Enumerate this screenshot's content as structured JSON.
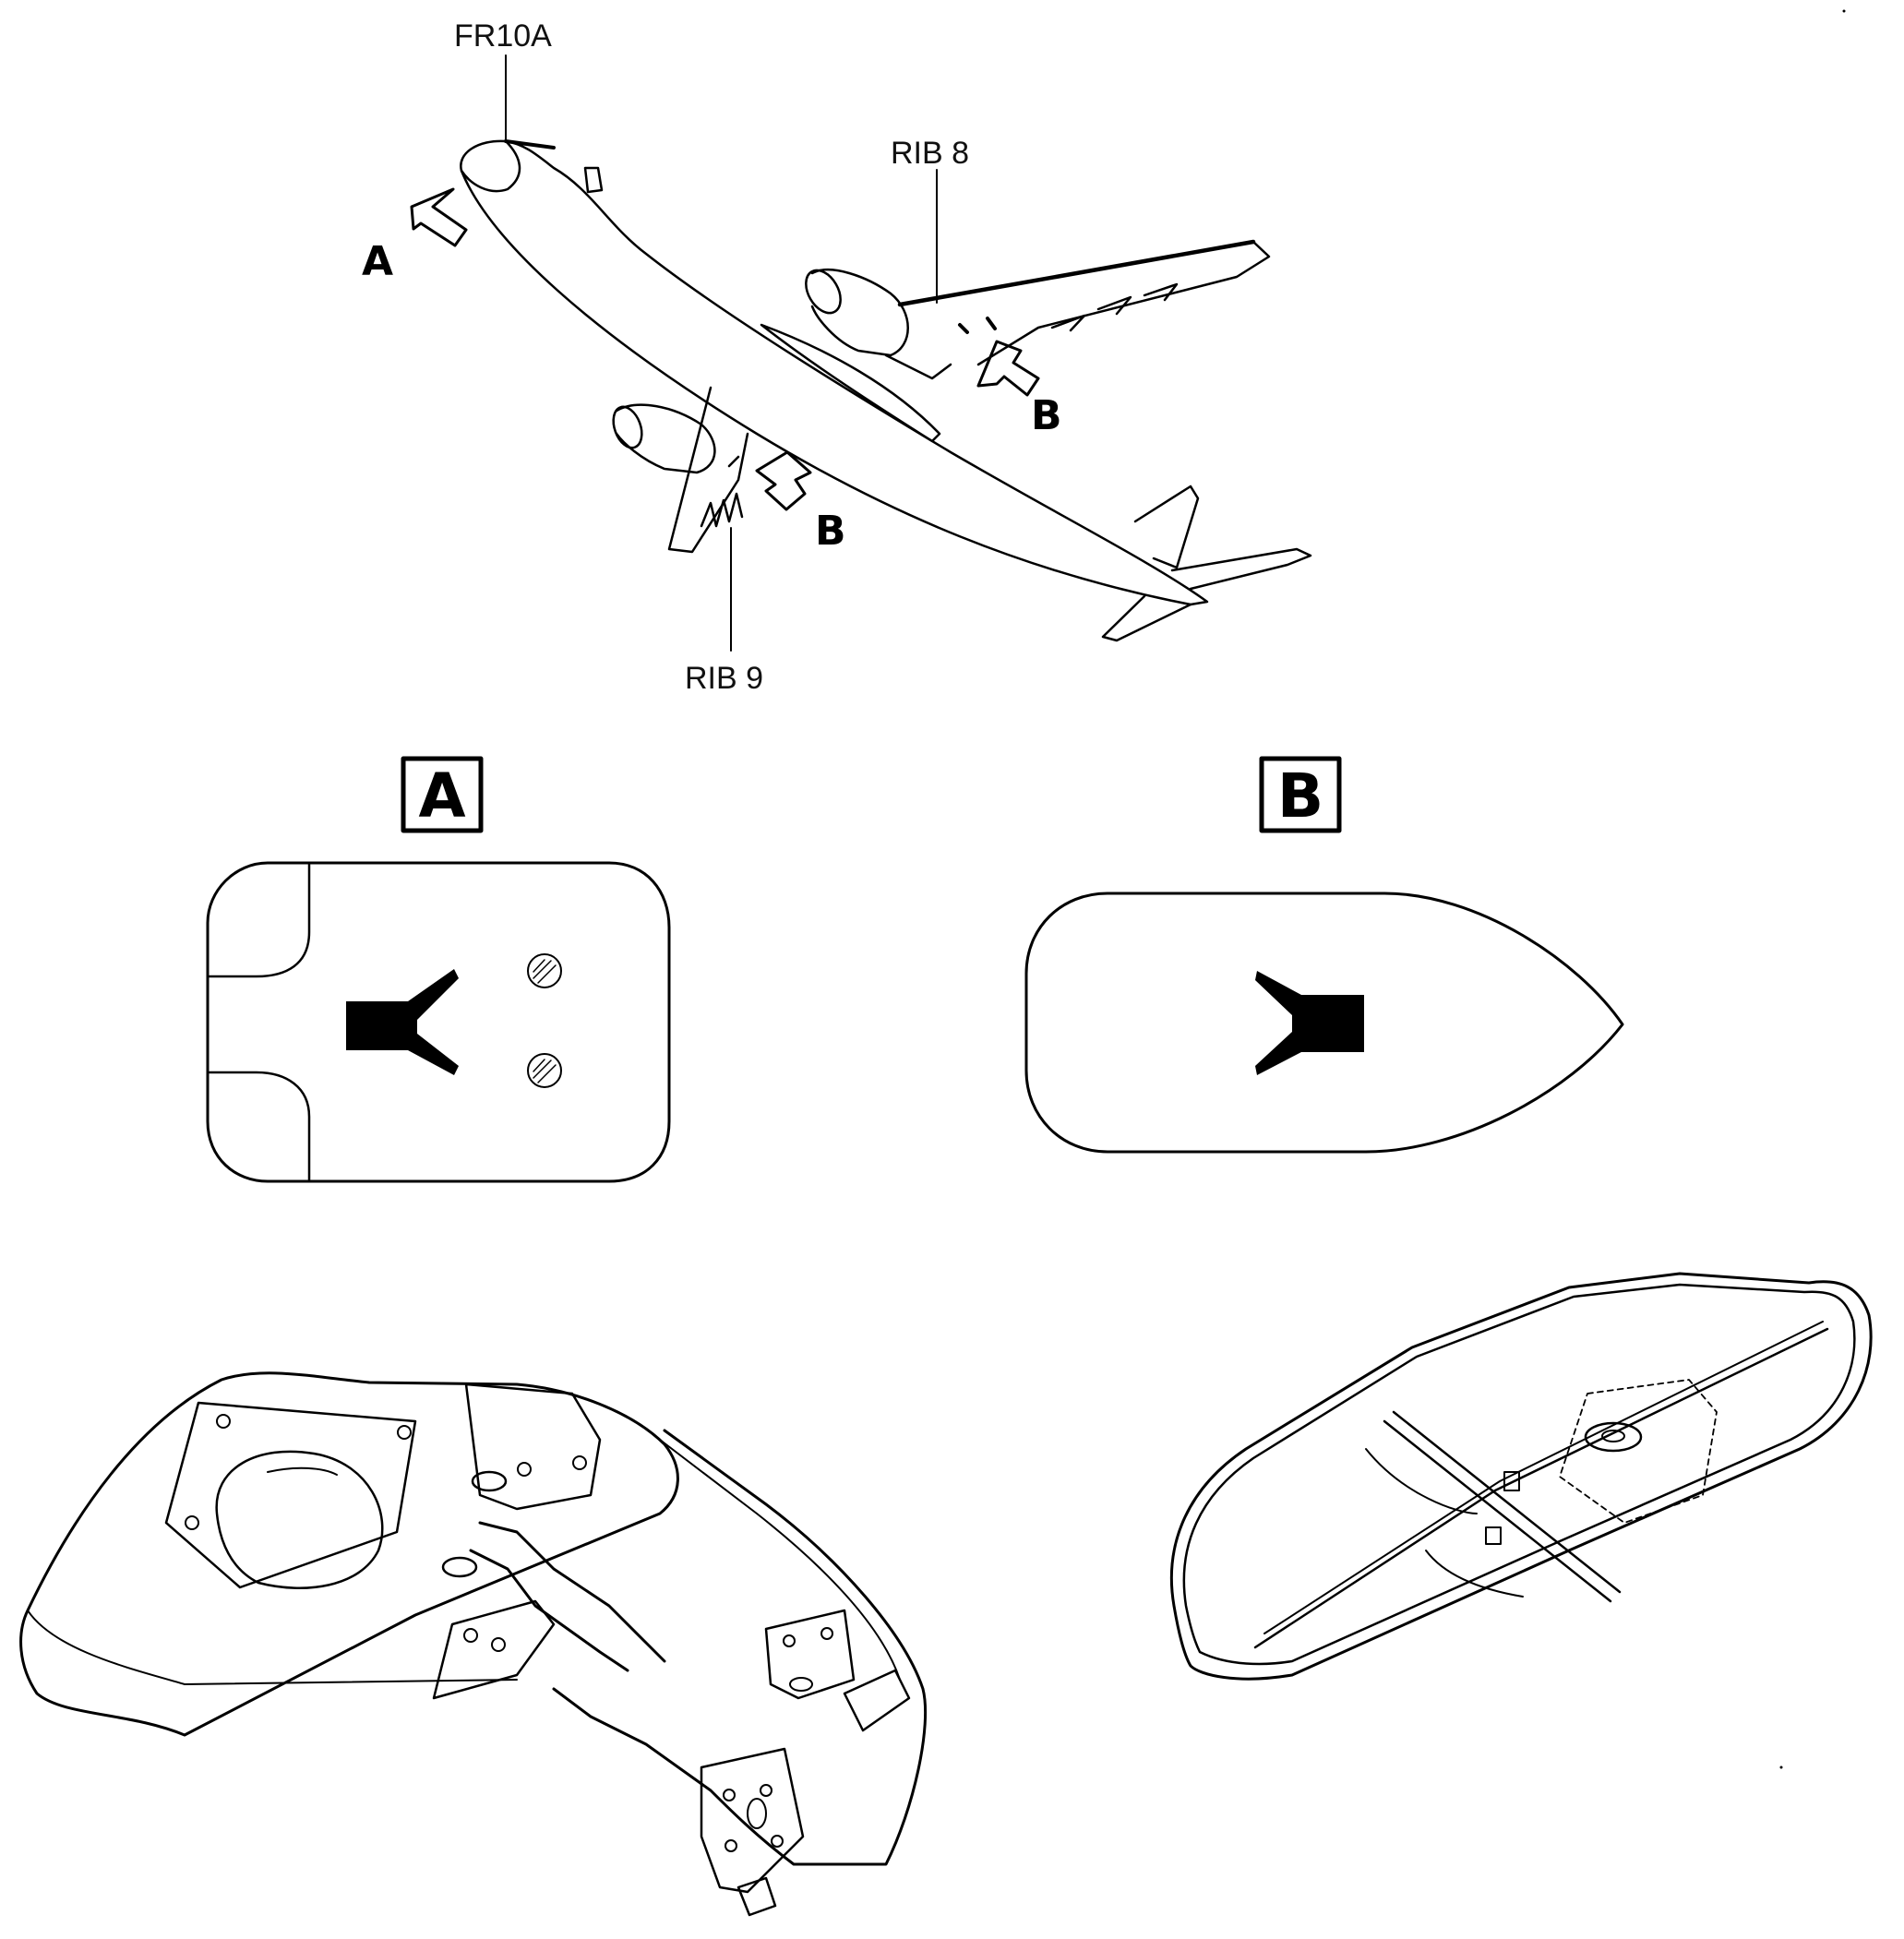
{
  "callouts": {
    "nose_frame": "FR10A",
    "right_wing_rib": "RIB 8",
    "left_wing_rib": "RIB 9"
  },
  "view_arrows": {
    "nose": "A",
    "right_wing": "B",
    "left_wing": "B"
  },
  "detail_views": {
    "a_label": "A",
    "b_label": "B"
  },
  "colors": {
    "line": "#000000",
    "background": "#ffffff"
  },
  "icons": [
    "airplane-icon",
    "view-arrow-icon",
    "antenna-symbol-icon",
    "screw-icon",
    "antenna-unit-icon"
  ]
}
